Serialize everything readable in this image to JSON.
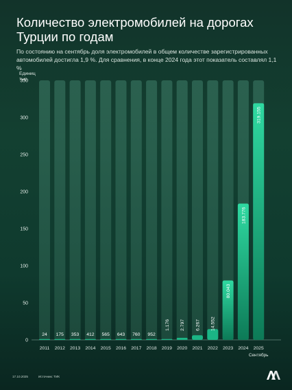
{
  "header": {
    "title": "Количество электромобилей на дорогах Турции по годам",
    "subtitle": "По состоянию на сентябрь доля электромобилей в общем количестве зарегистрированных автомобилей достигла 1,9 %. Для сравнения, в конце 2024 года этот показатель составлял 1,1 %"
  },
  "axis": {
    "unit_line1": "Единиц",
    "unit_line2": "тыс."
  },
  "chart_data": {
    "type": "bar",
    "categories": [
      "2011",
      "2012",
      "2013",
      "2014",
      "2015",
      "2016",
      "2017",
      "2018",
      "2019",
      "2020",
      "2021",
      "2022",
      "2023",
      "2024",
      "2025"
    ],
    "category_sublabels": {
      "2025": "Сентябрь"
    },
    "values": [
      0.024,
      0.175,
      0.353,
      0.412,
      0.565,
      0.643,
      0.76,
      0.952,
      1.176,
      2.797,
      6.267,
      14.552,
      80.043,
      183.776,
      319.155
    ],
    "value_labels": [
      "24",
      "175",
      "353",
      "412",
      "565",
      "643",
      "760",
      "952",
      "1.176",
      "2.797",
      "6.267",
      "14.552",
      "80.043",
      "183.776",
      "319.155"
    ],
    "yticks": [
      0,
      50,
      100,
      150,
      200,
      250,
      300,
      350
    ],
    "ylim": [
      0,
      350
    ],
    "title": "Количество электромобилей на дорогах Турции по годам",
    "ylabel": "Единиц тыс.",
    "grid": false,
    "legend": "none",
    "colors": {
      "background_bar": "#2f6b58",
      "bar_small": "#1bb585",
      "bar_top": "#2fd9a1",
      "bar_bottom": "#0d7a57"
    }
  },
  "footer": {
    "date": "17.10.2025",
    "source": "Источник: ТИК",
    "logo_icon": "aa-logo-icon"
  }
}
